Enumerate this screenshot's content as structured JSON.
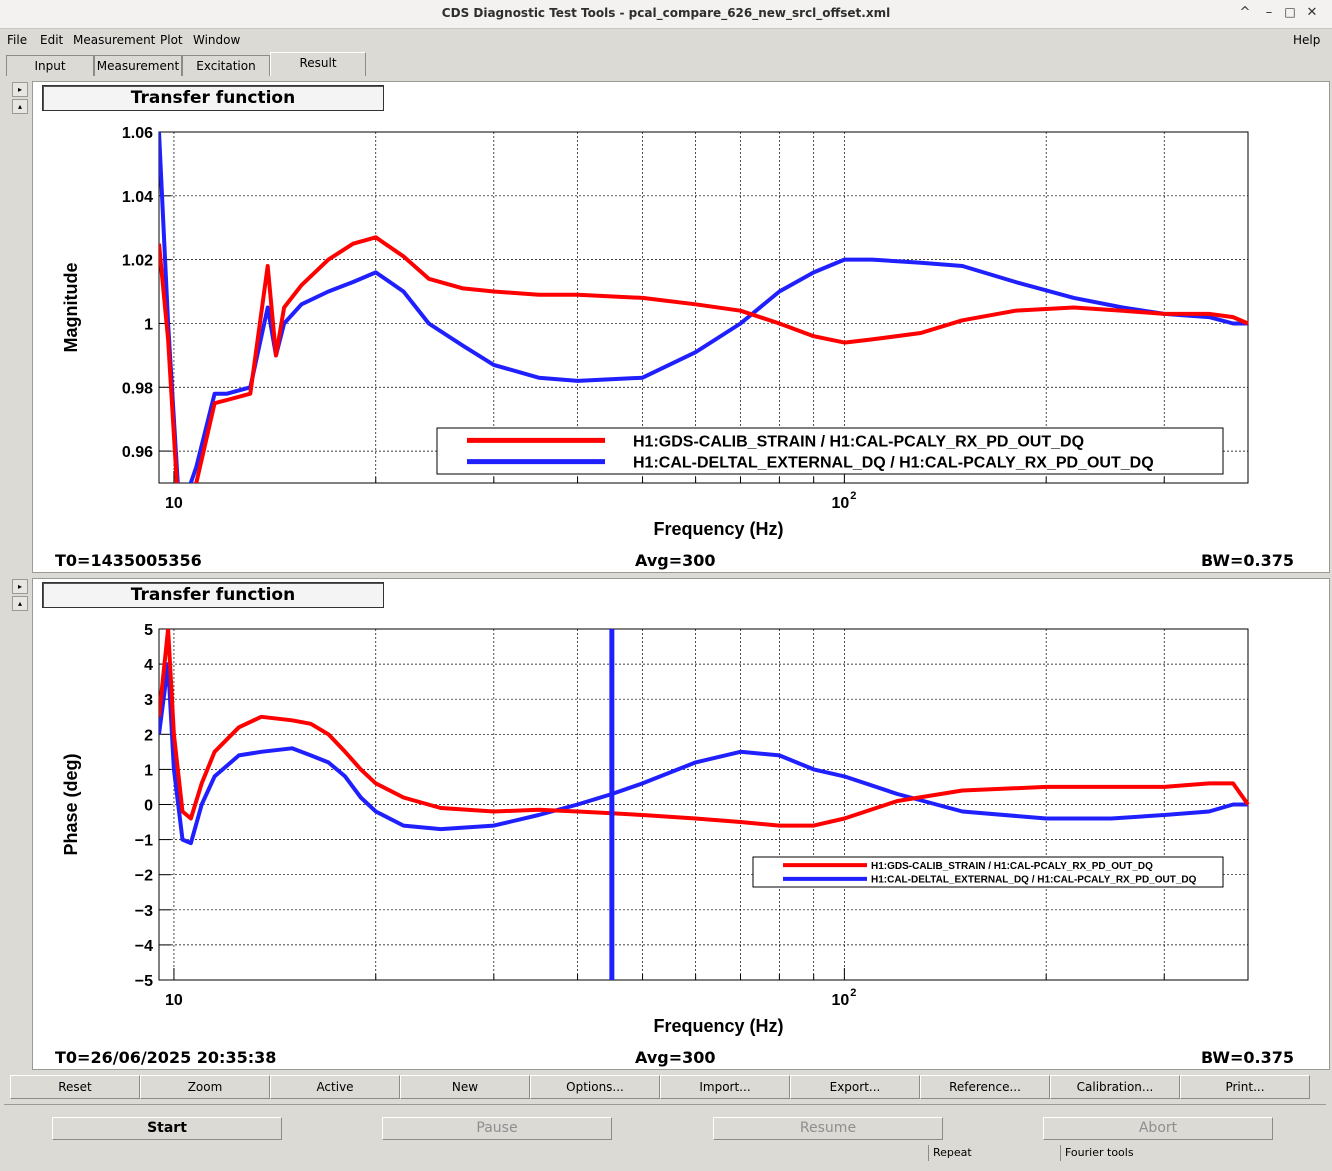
{
  "window": {
    "title": "CDS Diagnostic Test Tools - pcal_compare_626_new_srcl_offset.xml"
  },
  "menu": {
    "file": "File",
    "edit": "Edit",
    "measurement": "Measurement",
    "plot": "Plot",
    "window": "Window",
    "help": "Help"
  },
  "tabs": [
    "Input",
    "Measurement",
    "Excitation",
    "Result"
  ],
  "active_tab": "Result",
  "plots": [
    {
      "title": "Transfer function",
      "t0": "T0=1435005356",
      "avg": "Avg=300",
      "bw": "BW=0.375"
    },
    {
      "title": "Transfer function",
      "t0": "T0=26/06/2025 20:35:38",
      "avg": "Avg=300",
      "bw": "BW=0.375"
    }
  ],
  "buttons": [
    "Reset",
    "Zoom",
    "Active",
    "New",
    "Options...",
    "Import...",
    "Export...",
    "Reference...",
    "Calibration...",
    "Print..."
  ],
  "controls": {
    "start": "Start",
    "pause": "Pause",
    "resume": "Resume",
    "abort": "Abort"
  },
  "status": {
    "repeat": "Repeat",
    "fourier": "Fourier tools"
  },
  "colors": {
    "red": "#ff0000",
    "blue": "#2020ff"
  },
  "chart_data": [
    {
      "type": "line",
      "xlabel": "Frequency (Hz)",
      "ylabel": "Magnitude",
      "xscale": "log",
      "xlim": [
        9.5,
        400
      ],
      "ylim": [
        0.95,
        1.06
      ],
      "x_tick_labels": [
        "10",
        "10^2"
      ],
      "y_ticks": [
        0.96,
        0.98,
        1,
        1.02,
        1.04,
        1.06
      ],
      "y_tick_labels": [
        "0.96",
        "0.98",
        "1",
        "1.02",
        "1.04",
        "1.06"
      ],
      "grid": true,
      "legend_position": "bottom-right",
      "series": [
        {
          "name": "H1:GDS-CALIB_STRAIN / H1:CAL-PCALY_RX_PD_OUT_DQ",
          "color": "#ff0000",
          "x": [
            9.5,
            9.8,
            10.2,
            10.8,
            11.5,
            12,
            13,
            13.8,
            14.2,
            14.6,
            15.5,
            17,
            18.5,
            20,
            22,
            24,
            27,
            30,
            35,
            40,
            50,
            60,
            70,
            80,
            90,
            100,
            110,
            130,
            150,
            180,
            220,
            260,
            300,
            350,
            380,
            400
          ],
          "y": [
            1.025,
            0.995,
            0.935,
            0.95,
            0.975,
            0.976,
            0.978,
            1.018,
            0.99,
            1.005,
            1.012,
            1.02,
            1.025,
            1.027,
            1.021,
            1.014,
            1.011,
            1.01,
            1.009,
            1.009,
            1.008,
            1.006,
            1.004,
            1.0,
            0.996,
            0.994,
            0.995,
            0.997,
            1.001,
            1.004,
            1.005,
            1.004,
            1.003,
            1.003,
            1.002,
            1.0
          ]
        },
        {
          "name": "H1:CAL-DELTAL_EXTERNAL_DQ / H1:CAL-PCALY_RX_PD_OUT_DQ",
          "color": "#2020ff",
          "x": [
            9.5,
            9.8,
            10.2,
            10.8,
            11.5,
            12,
            13,
            13.8,
            14.2,
            14.6,
            15.5,
            17,
            18.5,
            20,
            22,
            24,
            27,
            30,
            35,
            40,
            50,
            60,
            70,
            80,
            90,
            100,
            110,
            130,
            150,
            180,
            220,
            260,
            300,
            350,
            380,
            400
          ],
          "y": [
            1.06,
            1.0,
            0.94,
            0.955,
            0.978,
            0.978,
            0.98,
            1.005,
            0.99,
            1.0,
            1.006,
            1.01,
            1.013,
            1.016,
            1.01,
            1.0,
            0.993,
            0.987,
            0.983,
            0.982,
            0.983,
            0.991,
            1.0,
            1.01,
            1.016,
            1.02,
            1.02,
            1.019,
            1.018,
            1.013,
            1.008,
            1.005,
            1.003,
            1.002,
            1.0,
            1.0
          ]
        }
      ]
    },
    {
      "type": "line",
      "xlabel": "Frequency (Hz)",
      "ylabel": "Phase (deg)",
      "xscale": "log",
      "xlim": [
        9.5,
        400
      ],
      "ylim": [
        -5,
        5
      ],
      "x_tick_labels": [
        "10",
        "10^2"
      ],
      "y_ticks": [
        -5,
        -4,
        -3,
        -2,
        -1,
        0,
        1,
        2,
        3,
        4,
        5
      ],
      "y_tick_labels": [
        "−5",
        "−4",
        "−3",
        "−2",
        "−1",
        "0",
        "1",
        "2",
        "3",
        "4",
        "5"
      ],
      "grid": true,
      "legend_position": "bottom-right",
      "series": [
        {
          "name": "H1:GDS-CALIB_STRAIN / H1:CAL-PCALY_RX_PD_OUT_DQ",
          "color": "#ff0000",
          "x": [
            9.5,
            9.8,
            10.0,
            10.3,
            10.6,
            11,
            11.5,
            12.5,
            13.5,
            15,
            16,
            17,
            18,
            19,
            20,
            22,
            25,
            30,
            35,
            40,
            45,
            50,
            60,
            70,
            80,
            90,
            100,
            120,
            150,
            200,
            250,
            300,
            350,
            380,
            400
          ],
          "y": [
            2.5,
            5.0,
            2.0,
            -0.2,
            -0.4,
            0.6,
            1.5,
            2.2,
            2.5,
            2.4,
            2.3,
            2.0,
            1.5,
            1.0,
            0.6,
            0.2,
            -0.1,
            -0.2,
            -0.15,
            -0.2,
            -0.25,
            -0.3,
            -0.4,
            -0.5,
            -0.6,
            -0.6,
            -0.4,
            0.1,
            0.4,
            0.5,
            0.5,
            0.5,
            0.6,
            0.6,
            0.0
          ]
        },
        {
          "name": "H1:CAL-DELTAL_EXTERNAL_DQ / H1:CAL-PCALY_RX_PD_OUT_DQ",
          "color": "#2020ff",
          "x": [
            9.5,
            9.8,
            10.0,
            10.3,
            10.6,
            11,
            11.5,
            12.5,
            13.5,
            15,
            16,
            17,
            18,
            19,
            20,
            22,
            25,
            30,
            35,
            40,
            45,
            50,
            60,
            70,
            80,
            90,
            100,
            120,
            150,
            200,
            250,
            300,
            350,
            380,
            400
          ],
          "y": [
            2.0,
            4.0,
            1.0,
            -1.0,
            -1.1,
            0.0,
            0.8,
            1.4,
            1.5,
            1.6,
            1.4,
            1.2,
            0.8,
            0.2,
            -0.2,
            -0.6,
            -0.7,
            -0.6,
            -0.3,
            0.0,
            0.3,
            0.6,
            1.2,
            1.5,
            1.4,
            1.0,
            0.8,
            0.3,
            -0.2,
            -0.4,
            -0.4,
            -0.3,
            -0.2,
            0.0,
            0.0
          ]
        }
      ]
    }
  ]
}
